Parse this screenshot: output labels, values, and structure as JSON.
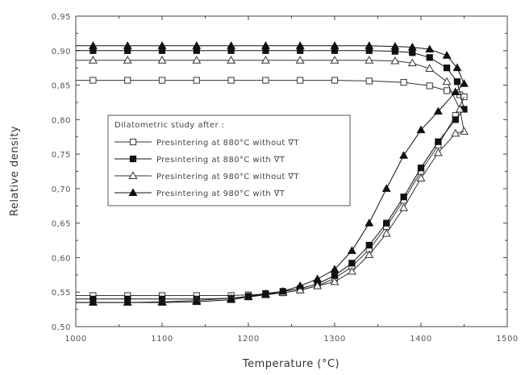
{
  "chart_data": {
    "type": "line",
    "xlabel": "Temperature (°C)",
    "ylabel": "Relative density",
    "xlim": [
      1000,
      1500
    ],
    "ylim": [
      0.5,
      0.95
    ],
    "x_ticks": [
      "1000",
      "1100",
      "1200",
      "1300",
      "1400",
      "1500"
    ],
    "x_tick_values": [
      1000,
      1100,
      1200,
      1300,
      1400,
      1500
    ],
    "y_ticks": [
      "0,50",
      "0,55",
      "0,60",
      "0,65",
      "0,70",
      "0,75",
      "0,80",
      "0,85",
      "0,90",
      "0,95"
    ],
    "y_tick_values": [
      0.5,
      0.55,
      0.6,
      0.65,
      0.7,
      0.75,
      0.8,
      0.85,
      0.9,
      0.95
    ],
    "grid": false,
    "legend": {
      "title": "Dilatometric study after :",
      "placement": "center-left"
    },
    "series": [
      {
        "name": "Presintering at 880°C without ∇T",
        "marker": "square-open",
        "color": "#333333",
        "heating": {
          "x": [
            1000,
            1020,
            1060,
            1100,
            1140,
            1180,
            1220,
            1260,
            1300,
            1340,
            1380,
            1410,
            1430,
            1445,
            1450
          ],
          "y": [
            0.857,
            0.857,
            0.857,
            0.857,
            0.857,
            0.857,
            0.857,
            0.857,
            0.857,
            0.856,
            0.854,
            0.849,
            0.842,
            0.836,
            0.833
          ]
        },
        "cooling": {
          "x": [
            1000,
            1020,
            1060,
            1100,
            1140,
            1180,
            1200,
            1220,
            1240,
            1260,
            1280,
            1300,
            1320,
            1340,
            1360,
            1380,
            1400,
            1420,
            1440,
            1450
          ],
          "y": [
            0.545,
            0.545,
            0.545,
            0.545,
            0.545,
            0.545,
            0.546,
            0.547,
            0.549,
            0.553,
            0.559,
            0.57,
            0.587,
            0.612,
            0.645,
            0.683,
            0.725,
            0.763,
            0.806,
            0.833
          ]
        }
      },
      {
        "name": "Presintering at 880°C with ∇T",
        "marker": "square-filled",
        "color": "#111111",
        "heating": {
          "x": [
            1000,
            1020,
            1060,
            1100,
            1140,
            1180,
            1220,
            1260,
            1300,
            1340,
            1370,
            1390,
            1410,
            1430,
            1442,
            1450
          ],
          "y": [
            0.9,
            0.9,
            0.9,
            0.9,
            0.9,
            0.9,
            0.9,
            0.9,
            0.9,
            0.9,
            0.899,
            0.897,
            0.89,
            0.875,
            0.855,
            0.815
          ]
        },
        "cooling": {
          "x": [
            1000,
            1020,
            1060,
            1100,
            1140,
            1180,
            1200,
            1220,
            1240,
            1260,
            1280,
            1300,
            1320,
            1340,
            1360,
            1380,
            1400,
            1420,
            1440,
            1450
          ],
          "y": [
            0.54,
            0.54,
            0.54,
            0.54,
            0.54,
            0.541,
            0.544,
            0.548,
            0.551,
            0.555,
            0.562,
            0.574,
            0.592,
            0.618,
            0.65,
            0.688,
            0.73,
            0.768,
            0.8,
            0.815
          ]
        }
      },
      {
        "name": "Presintering at 980°C without ∇T",
        "marker": "triangle-open",
        "color": "#333333",
        "heating": {
          "x": [
            1000,
            1020,
            1060,
            1100,
            1140,
            1180,
            1220,
            1260,
            1300,
            1340,
            1370,
            1390,
            1410,
            1430,
            1445,
            1450
          ],
          "y": [
            0.886,
            0.886,
            0.886,
            0.886,
            0.886,
            0.886,
            0.886,
            0.886,
            0.886,
            0.886,
            0.885,
            0.882,
            0.874,
            0.855,
            0.815,
            0.783
          ]
        },
        "cooling": {
          "x": [
            1000,
            1020,
            1060,
            1100,
            1140,
            1180,
            1200,
            1220,
            1240,
            1260,
            1280,
            1300,
            1320,
            1340,
            1360,
            1380,
            1400,
            1420,
            1440,
            1450
          ],
          "y": [
            0.535,
            0.535,
            0.535,
            0.536,
            0.538,
            0.541,
            0.543,
            0.546,
            0.549,
            0.553,
            0.559,
            0.565,
            0.58,
            0.604,
            0.635,
            0.672,
            0.715,
            0.752,
            0.78,
            0.783
          ]
        }
      },
      {
        "name": "Presintering at 980°C with ∇T",
        "marker": "triangle-filled",
        "color": "#111111",
        "heating": {
          "x": [
            1000,
            1020,
            1060,
            1100,
            1140,
            1180,
            1220,
            1260,
            1300,
            1340,
            1370,
            1390,
            1410,
            1430,
            1442,
            1450
          ],
          "y": [
            0.907,
            0.907,
            0.907,
            0.907,
            0.907,
            0.907,
            0.907,
            0.907,
            0.907,
            0.907,
            0.906,
            0.905,
            0.902,
            0.893,
            0.875,
            0.852
          ]
        },
        "cooling": {
          "x": [
            1000,
            1020,
            1060,
            1100,
            1140,
            1180,
            1200,
            1220,
            1240,
            1260,
            1280,
            1300,
            1320,
            1340,
            1360,
            1380,
            1400,
            1420,
            1440,
            1450
          ],
          "y": [
            0.535,
            0.535,
            0.535,
            0.535,
            0.536,
            0.539,
            0.543,
            0.547,
            0.551,
            0.559,
            0.569,
            0.583,
            0.61,
            0.65,
            0.7,
            0.748,
            0.785,
            0.812,
            0.84,
            0.852
          ]
        }
      }
    ]
  }
}
